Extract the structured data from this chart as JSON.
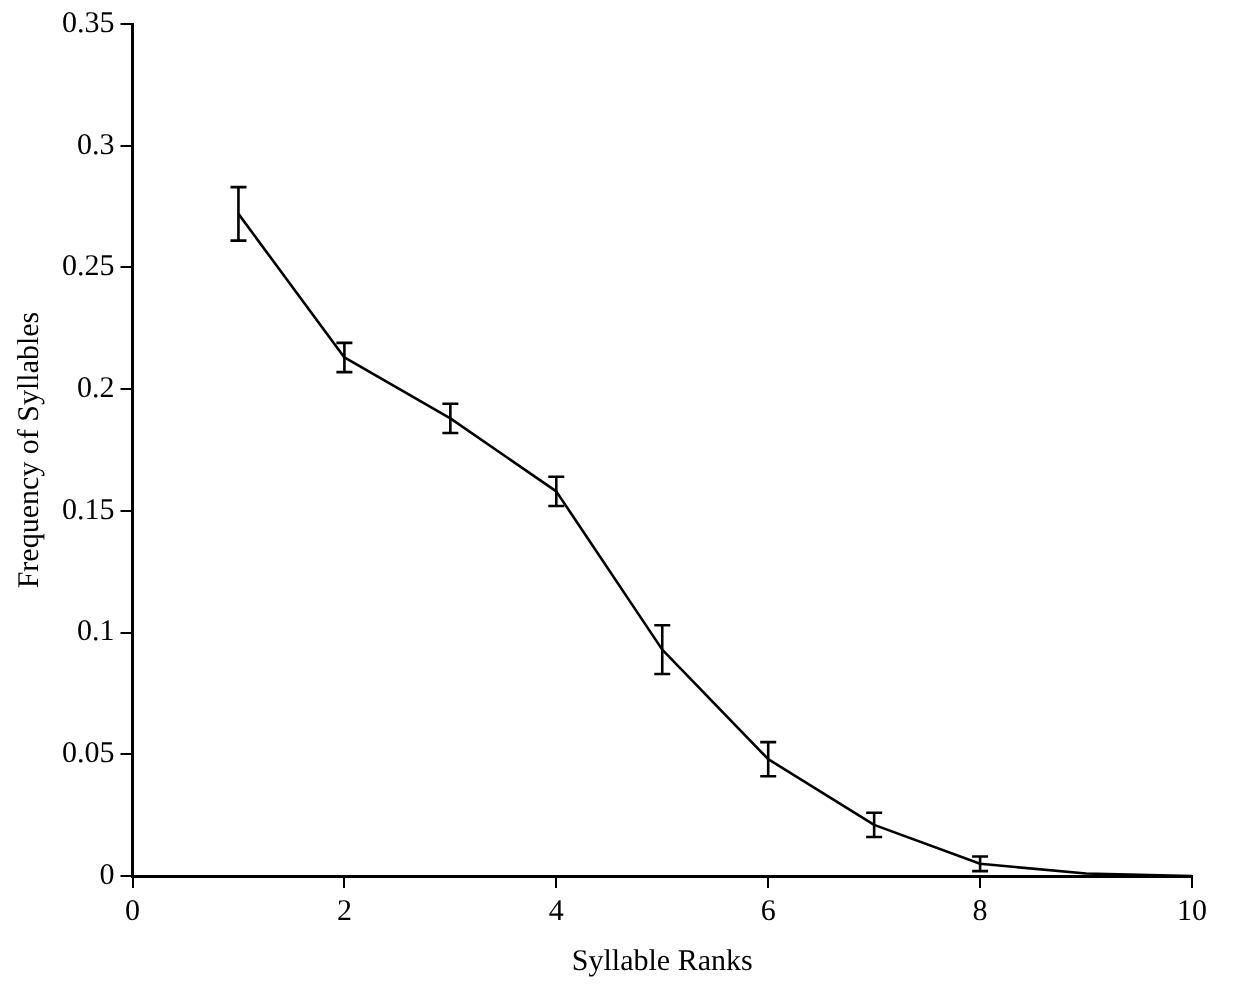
{
  "chart_data": {
    "type": "line",
    "xlabel": "Syllable Ranks",
    "ylabel": "Frequency of Syllables",
    "x": [
      1,
      2,
      3,
      4,
      5,
      6,
      7,
      8,
      9,
      10
    ],
    "series": [
      {
        "color": "#000000",
        "values": [
          0.272,
          0.213,
          0.188,
          0.158,
          0.093,
          0.048,
          0.021,
          0.005,
          0.001,
          0
        ],
        "errors": [
          0.011,
          0.006,
          0.006,
          0.006,
          0.01,
          0.007,
          0.005,
          0.003,
          null,
          null
        ]
      }
    ],
    "xlim": [
      0,
      10
    ],
    "xticks": [
      0,
      2,
      4,
      6,
      8,
      10
    ],
    "ylim": [
      0,
      0.35
    ],
    "yticks": [
      0,
      0.05,
      0.1,
      0.15,
      0.2,
      0.25,
      0.3,
      0.35
    ],
    "grid": false,
    "legend": false,
    "marker": "none",
    "line_style": "solid"
  }
}
